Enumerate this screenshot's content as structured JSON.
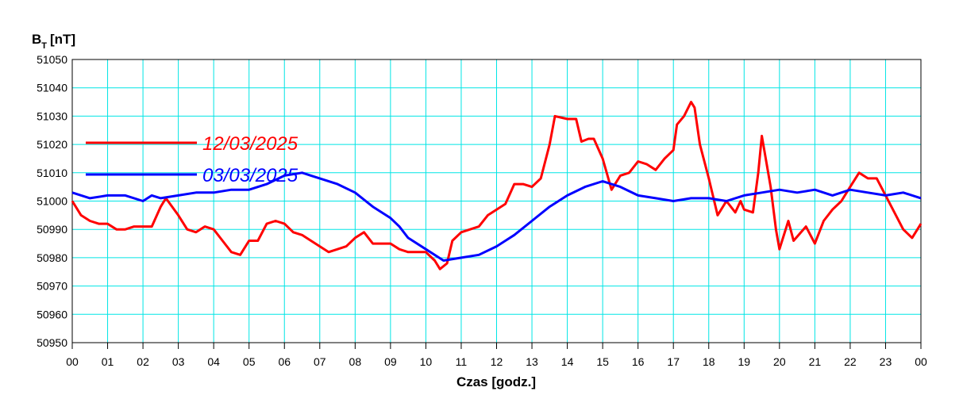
{
  "chart_data": {
    "type": "line",
    "y_label": {
      "main": "B",
      "sub": "T",
      "unit": "[nT]"
    },
    "x_label": "Czas [godz.]",
    "xlim": [
      0,
      24
    ],
    "ylim": [
      50950,
      51050
    ],
    "xticks": [
      {
        "value": 0,
        "label": "00"
      },
      {
        "value": 1,
        "label": "01"
      },
      {
        "value": 2,
        "label": "02"
      },
      {
        "value": 3,
        "label": "03"
      },
      {
        "value": 4,
        "label": "04"
      },
      {
        "value": 5,
        "label": "05"
      },
      {
        "value": 6,
        "label": "06"
      },
      {
        "value": 7,
        "label": "07"
      },
      {
        "value": 8,
        "label": "08"
      },
      {
        "value": 9,
        "label": "09"
      },
      {
        "value": 10,
        "label": "10"
      },
      {
        "value": 11,
        "label": "11"
      },
      {
        "value": 12,
        "label": "12"
      },
      {
        "value": 13,
        "label": "13"
      },
      {
        "value": 14,
        "label": "14"
      },
      {
        "value": 15,
        "label": "15"
      },
      {
        "value": 16,
        "label": "16"
      },
      {
        "value": 17,
        "label": "17"
      },
      {
        "value": 18,
        "label": "18"
      },
      {
        "value": 19,
        "label": "19"
      },
      {
        "value": 20,
        "label": "20"
      },
      {
        "value": 21,
        "label": "21"
      },
      {
        "value": 22,
        "label": "22"
      },
      {
        "value": 23,
        "label": "23"
      },
      {
        "value": 24,
        "label": "00"
      }
    ],
    "yticks": [
      50950,
      50960,
      50970,
      50980,
      50990,
      51000,
      51010,
      51020,
      51030,
      51040,
      51050
    ],
    "grid": true,
    "legend": "upper left",
    "series": [
      {
        "name": "12/03/2025",
        "color": "#ff0000",
        "x": [
          0,
          0.25,
          0.5,
          0.75,
          1,
          1.25,
          1.5,
          1.75,
          2,
          2.25,
          2.5,
          2.65,
          3,
          3.25,
          3.5,
          3.75,
          4,
          4.25,
          4.5,
          4.75,
          5,
          5.25,
          5.5,
          5.75,
          6,
          6.25,
          6.5,
          6.75,
          7,
          7.25,
          7.5,
          7.75,
          8,
          8.25,
          8.5,
          8.75,
          9,
          9.25,
          9.5,
          9.75,
          10,
          10.25,
          10.4,
          10.6,
          10.75,
          11,
          11.25,
          11.5,
          11.75,
          12,
          12.25,
          12.5,
          12.75,
          13,
          13.25,
          13.5,
          13.65,
          14,
          14.25,
          14.4,
          14.6,
          14.75,
          15,
          15.25,
          15.5,
          15.75,
          16,
          16.25,
          16.5,
          16.75,
          17,
          17.1,
          17.3,
          17.5,
          17.6,
          17.75,
          18,
          18.25,
          18.5,
          18.75,
          18.9,
          19,
          19.25,
          19.4,
          19.5,
          19.75,
          19.9,
          20,
          20.25,
          20.4,
          20.75,
          21,
          21.25,
          21.5,
          21.75,
          22,
          22.25,
          22.5,
          22.75,
          23,
          23.25,
          23.5,
          23.75,
          24
        ],
        "values": [
          51000,
          50995,
          50993,
          50992,
          50992,
          50990,
          50990,
          50991,
          50991,
          50991,
          50998,
          51001,
          50995,
          50990,
          50989,
          50991,
          50990,
          50986,
          50982,
          50981,
          50986,
          50986,
          50992,
          50993,
          50992,
          50989,
          50988,
          50986,
          50984,
          50982,
          50983,
          50984,
          50987,
          50989,
          50985,
          50985,
          50985,
          50983,
          50982,
          50982,
          50982,
          50979,
          50976,
          50978,
          50986,
          50989,
          50990,
          50991,
          50995,
          50997,
          50999,
          51006,
          51006,
          51005,
          51008,
          51020,
          51030,
          51029,
          51029,
          51021,
          51022,
          51022,
          51015,
          51004,
          51009,
          51010,
          51014,
          51013,
          51011,
          51015,
          51018,
          51027,
          51030,
          51035,
          51033,
          51020,
          51008,
          50995,
          51000,
          50996,
          51000,
          50997,
          50996,
          51010,
          51023,
          51005,
          50990,
          50983,
          50993,
          50986,
          50991,
          50985,
          50993,
          50997,
          51000,
          51005,
          51010,
          51008,
          51008,
          51002,
          50996,
          50990,
          50987,
          50992
        ]
      },
      {
        "name": "03/03/2025",
        "color": "#0000ff",
        "x": [
          0,
          0.5,
          1,
          1.5,
          2,
          2.25,
          2.5,
          3,
          3.5,
          4,
          4.5,
          5,
          5.5,
          6,
          6.5,
          6.75,
          7,
          7.5,
          8,
          8.5,
          9,
          9.25,
          9.5,
          10,
          10.5,
          11,
          11.5,
          12,
          12.5,
          13,
          13.5,
          14,
          14.5,
          15,
          15.5,
          16,
          16.5,
          17,
          17.5,
          18,
          18.5,
          19,
          19.5,
          20,
          20.5,
          21,
          21.5,
          22,
          22.5,
          23,
          23.5,
          24
        ],
        "values": [
          51003,
          51001,
          51002,
          51002,
          51000,
          51002,
          51001,
          51002,
          51003,
          51003,
          51004,
          51004,
          51006,
          51009,
          51010,
          51009,
          51008,
          51006,
          51003,
          50998,
          50994,
          50991,
          50987,
          50983,
          50979,
          50980,
          50981,
          50984,
          50988,
          50993,
          50998,
          51002,
          51005,
          51007,
          51005,
          51002,
          51001,
          51000,
          51001,
          51001,
          51000,
          51002,
          51003,
          51004,
          51003,
          51004,
          51002,
          51004,
          51003,
          51002,
          51003,
          51001
        ]
      }
    ]
  }
}
